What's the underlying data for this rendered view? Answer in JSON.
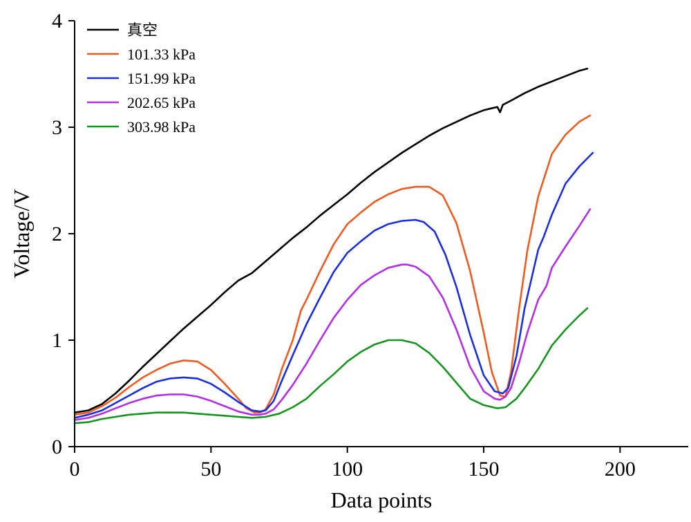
{
  "chart_data": {
    "type": "line",
    "title": "",
    "xlabel": "Data points",
    "ylabel": "Voltage/V",
    "xlim": [
      0,
      225
    ],
    "ylim": [
      0,
      4
    ],
    "xticks": [
      0,
      50,
      100,
      150,
      200
    ],
    "yticks": [
      0,
      1,
      2,
      3,
      4
    ],
    "grid": false,
    "legend_position": "top-left",
    "series": [
      {
        "name": "真空",
        "color": "#000000",
        "x": [
          0,
          5,
          10,
          15,
          20,
          25,
          30,
          35,
          40,
          45,
          50,
          55,
          60,
          65,
          70,
          75,
          80,
          85,
          90,
          95,
          100,
          105,
          110,
          115,
          120,
          125,
          130,
          135,
          140,
          145,
          150,
          155,
          156,
          157,
          160,
          165,
          170,
          175,
          180,
          185,
          188
        ],
        "y": [
          0.32,
          0.34,
          0.4,
          0.5,
          0.62,
          0.75,
          0.87,
          0.99,
          1.11,
          1.22,
          1.33,
          1.45,
          1.56,
          1.63,
          1.74,
          1.85,
          1.96,
          2.06,
          2.17,
          2.27,
          2.37,
          2.48,
          2.58,
          2.67,
          2.76,
          2.84,
          2.92,
          2.99,
          3.05,
          3.11,
          3.16,
          3.19,
          3.14,
          3.21,
          3.25,
          3.32,
          3.38,
          3.43,
          3.48,
          3.53,
          3.55
        ]
      },
      {
        "name": "101.33 kPa",
        "color": "#f05a1e",
        "x": [
          0,
          5,
          10,
          15,
          20,
          25,
          30,
          35,
          40,
          45,
          50,
          55,
          60,
          63,
          66,
          68,
          70,
          73,
          76,
          80,
          83,
          85,
          90,
          95,
          100,
          105,
          110,
          115,
          120,
          125,
          130,
          135,
          140,
          145,
          150,
          153,
          156,
          158,
          160,
          163,
          166,
          170,
          175,
          180,
          185,
          189
        ],
        "y": [
          0.3,
          0.32,
          0.38,
          0.46,
          0.56,
          0.65,
          0.72,
          0.78,
          0.81,
          0.8,
          0.72,
          0.59,
          0.45,
          0.36,
          0.32,
          0.32,
          0.35,
          0.49,
          0.73,
          1.0,
          1.28,
          1.38,
          1.65,
          1.9,
          2.09,
          2.2,
          2.3,
          2.37,
          2.42,
          2.44,
          2.44,
          2.36,
          2.1,
          1.65,
          1.07,
          0.7,
          0.48,
          0.47,
          0.7,
          1.3,
          1.84,
          2.35,
          2.75,
          2.93,
          3.05,
          3.11
        ]
      },
      {
        "name": "151.99 kPa",
        "color": "#1a2ce8",
        "x": [
          0,
          5,
          10,
          15,
          20,
          25,
          30,
          35,
          40,
          45,
          50,
          55,
          60,
          65,
          68,
          70,
          73,
          76,
          80,
          85,
          90,
          95,
          100,
          105,
          110,
          115,
          120,
          125,
          128,
          132,
          136,
          140,
          145,
          150,
          154,
          157,
          159,
          162,
          165,
          170,
          172,
          175,
          180,
          185,
          190
        ],
        "y": [
          0.27,
          0.3,
          0.34,
          0.41,
          0.48,
          0.55,
          0.61,
          0.64,
          0.65,
          0.64,
          0.59,
          0.51,
          0.42,
          0.34,
          0.33,
          0.34,
          0.43,
          0.62,
          0.86,
          1.15,
          1.4,
          1.64,
          1.82,
          1.93,
          2.03,
          2.09,
          2.12,
          2.13,
          2.11,
          2.02,
          1.8,
          1.5,
          1.05,
          0.67,
          0.52,
          0.5,
          0.55,
          0.85,
          1.3,
          1.85,
          1.97,
          2.18,
          2.47,
          2.63,
          2.76
        ]
      },
      {
        "name": "202.65 kPa",
        "color": "#b42de8",
        "x": [
          0,
          5,
          10,
          15,
          20,
          25,
          30,
          35,
          40,
          45,
          50,
          55,
          60,
          65,
          68,
          70,
          73,
          76,
          80,
          85,
          90,
          95,
          100,
          105,
          110,
          115,
          120,
          122,
          125,
          130,
          135,
          140,
          145,
          150,
          154,
          156,
          158,
          160,
          163,
          166,
          170,
          173,
          175,
          180,
          185,
          189
        ],
        "y": [
          0.25,
          0.27,
          0.31,
          0.36,
          0.41,
          0.45,
          0.48,
          0.49,
          0.49,
          0.47,
          0.43,
          0.38,
          0.33,
          0.3,
          0.3,
          0.31,
          0.35,
          0.44,
          0.58,
          0.78,
          1.0,
          1.21,
          1.38,
          1.52,
          1.61,
          1.68,
          1.71,
          1.71,
          1.69,
          1.6,
          1.4,
          1.1,
          0.75,
          0.52,
          0.45,
          0.44,
          0.47,
          0.55,
          0.79,
          1.07,
          1.38,
          1.51,
          1.68,
          1.88,
          2.07,
          2.23
        ]
      },
      {
        "name": "303.98 kPa",
        "color": "#14961e",
        "x": [
          0,
          5,
          10,
          15,
          20,
          25,
          30,
          35,
          40,
          45,
          50,
          55,
          60,
          65,
          70,
          75,
          80,
          85,
          90,
          95,
          100,
          105,
          110,
          115,
          120,
          125,
          130,
          135,
          140,
          145,
          150,
          155,
          158,
          162,
          165,
          170,
          175,
          180,
          185,
          188
        ],
        "y": [
          0.22,
          0.23,
          0.26,
          0.28,
          0.3,
          0.31,
          0.32,
          0.32,
          0.32,
          0.31,
          0.3,
          0.29,
          0.28,
          0.27,
          0.28,
          0.31,
          0.37,
          0.45,
          0.57,
          0.68,
          0.8,
          0.89,
          0.96,
          1.0,
          1.0,
          0.97,
          0.88,
          0.75,
          0.6,
          0.45,
          0.39,
          0.36,
          0.37,
          0.45,
          0.55,
          0.73,
          0.95,
          1.1,
          1.23,
          1.3
        ]
      }
    ]
  }
}
